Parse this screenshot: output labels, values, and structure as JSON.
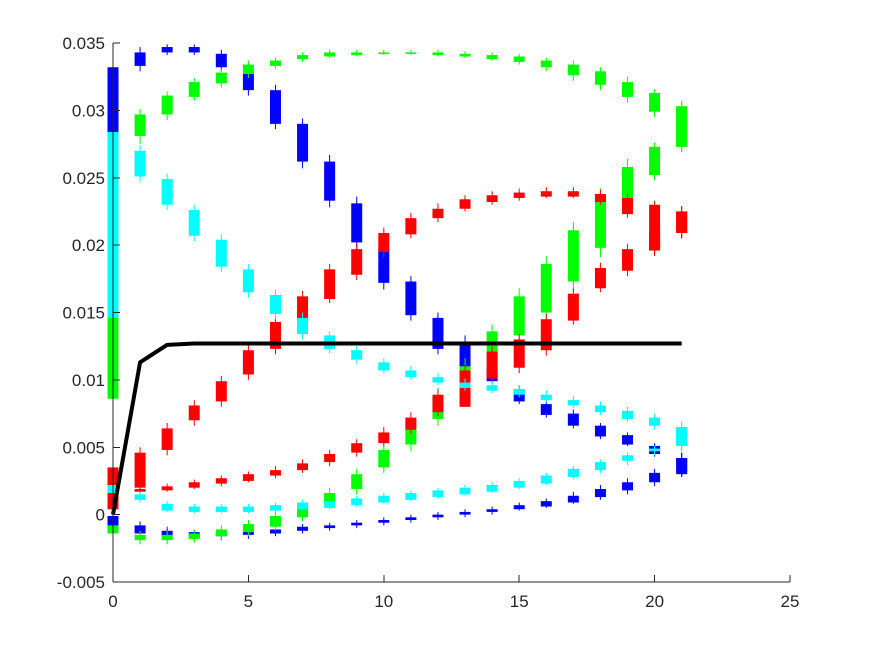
{
  "chart_data": {
    "type": "candlestick",
    "title": "",
    "xlabel": "",
    "ylabel": "",
    "xlim": [
      0,
      25
    ],
    "ylim": [
      -0.005,
      0.035
    ],
    "x_ticks": [
      0,
      5,
      10,
      15,
      20,
      25
    ],
    "y_ticks": [
      -0.005,
      0,
      0.005,
      0.01,
      0.015,
      0.02,
      0.025,
      0.03,
      0.035
    ],
    "x_tick_labels": [
      "0",
      "5",
      "10",
      "15",
      "20",
      "25"
    ],
    "y_tick_labels": [
      "-0.005",
      "0",
      "0.005",
      "0.01",
      "0.015",
      "0.02",
      "0.025",
      "0.03",
      "0.035"
    ],
    "grid": false,
    "box": false,
    "line_series": [
      {
        "color": "#000000",
        "x": [
          0,
          1,
          2,
          3,
          4,
          5,
          6,
          7,
          8,
          9,
          10,
          11,
          12,
          13,
          14,
          15,
          16,
          17,
          18,
          19,
          20,
          21
        ],
        "y": [
          0.0,
          0.0113,
          0.0126,
          0.0127,
          0.0127,
          0.0127,
          0.0127,
          0.0127,
          0.0127,
          0.0127,
          0.0127,
          0.0127,
          0.0127,
          0.0127,
          0.0127,
          0.0127,
          0.0127,
          0.0127,
          0.0127,
          0.0127,
          0.0127,
          0.0127
        ]
      }
    ],
    "box_series": [
      {
        "color": "#0000ff",
        "x": [
          0,
          1,
          2,
          3,
          4,
          5,
          6,
          7,
          8,
          9,
          10,
          11,
          12,
          13,
          14,
          15,
          16,
          17,
          18,
          19,
          20,
          21
        ],
        "low": [
          0.0272,
          0.0329,
          0.0341,
          0.0341,
          0.0329,
          0.0311,
          0.0286,
          0.0257,
          0.0228,
          0.0197,
          0.0167,
          0.0144,
          0.0119,
          0.0107,
          0.0097,
          0.0082,
          0.0072,
          0.0064,
          0.0056,
          0.0051,
          0.0043,
          0.0028
        ],
        "q1": [
          0.0282,
          0.0333,
          0.0343,
          0.0343,
          0.0332,
          0.0315,
          0.029,
          0.0262,
          0.0233,
          0.0202,
          0.0172,
          0.0148,
          0.0123,
          0.011,
          0.0099,
          0.0084,
          0.0074,
          0.0066,
          0.0058,
          0.0052,
          0.0045,
          0.0032
        ],
        "q3": [
          0.0332,
          0.0343,
          0.0347,
          0.0347,
          0.0342,
          0.0327,
          0.0315,
          0.029,
          0.0262,
          0.0231,
          0.0197,
          0.0173,
          0.0146,
          0.0128,
          0.0108,
          0.0093,
          0.0082,
          0.0075,
          0.0066,
          0.0059,
          0.0051,
          0.0042
        ],
        "high": [
          0.0336,
          0.0347,
          0.0349,
          0.0349,
          0.0345,
          0.0331,
          0.0319,
          0.0294,
          0.0267,
          0.0236,
          0.0202,
          0.0177,
          0.015,
          0.0133,
          0.0111,
          0.0096,
          0.0085,
          0.0078,
          0.0068,
          0.0061,
          0.0053,
          0.0046
        ]
      },
      {
        "color": "#0000ff",
        "x": [
          0,
          1,
          2,
          3,
          4,
          5,
          6,
          7,
          8,
          9,
          10,
          11,
          12,
          13,
          14,
          15,
          16,
          17,
          18,
          19,
          20,
          21
        ],
        "low": [
          -0.0014,
          -0.0017,
          -0.0018,
          -0.0019,
          -0.0019,
          -0.0018,
          -0.0016,
          -0.0014,
          -0.0012,
          -0.001,
          -0.0008,
          -0.0006,
          -0.0004,
          -0.0002,
          0.0,
          0.0003,
          0.0005,
          0.0008,
          0.0011,
          0.0015,
          0.0021,
          0.0028
        ],
        "q1": [
          -0.001,
          -0.0014,
          -0.0016,
          -0.0017,
          -0.0016,
          -0.0015,
          -0.0014,
          -0.0012,
          -0.001,
          -0.0008,
          -0.0006,
          -0.0004,
          -0.0002,
          0.0,
          0.0002,
          0.0004,
          0.0006,
          0.0009,
          0.0013,
          0.0018,
          0.0024,
          0.003
        ],
        "q3": [
          -0.0001,
          -0.0008,
          -0.0012,
          -0.0013,
          -0.0013,
          -0.0012,
          -0.0011,
          -0.0009,
          -0.0008,
          -0.0006,
          -0.0004,
          -0.0002,
          0.0,
          0.0002,
          0.0004,
          0.0007,
          0.001,
          0.0014,
          0.0019,
          0.0024,
          0.0031,
          0.0042
        ],
        "high": [
          0.0003,
          -0.0005,
          -0.0009,
          -0.0011,
          -0.0011,
          -0.001,
          -0.0009,
          -0.0007,
          -0.0006,
          -0.0004,
          -0.0002,
          0.0,
          0.0002,
          0.0004,
          0.0006,
          0.0009,
          0.0012,
          0.0017,
          0.0022,
          0.0027,
          0.0034,
          0.0046
        ]
      },
      {
        "color": "#00ff00",
        "x": [
          0,
          1,
          2,
          3,
          4,
          5,
          6,
          7,
          8,
          9,
          10,
          11,
          12,
          13,
          14,
          15,
          16,
          17,
          18,
          19,
          20,
          21
        ],
        "low": [
          0.0082,
          0.0275,
          0.0293,
          0.0307,
          0.0317,
          0.0324,
          0.0331,
          0.0336,
          0.0339,
          0.034,
          0.0341,
          0.0341,
          0.034,
          0.0339,
          0.0337,
          0.0334,
          0.0329,
          0.0322,
          0.0315,
          0.0306,
          0.0295,
          0.0269
        ],
        "q1": [
          0.0086,
          0.0281,
          0.0297,
          0.031,
          0.032,
          0.0327,
          0.0333,
          0.0338,
          0.034,
          0.0341,
          0.0342,
          0.0342,
          0.0341,
          0.034,
          0.0338,
          0.0336,
          0.0332,
          0.0326,
          0.0319,
          0.031,
          0.0299,
          0.0273
        ],
        "q3": [
          0.0152,
          0.0297,
          0.0311,
          0.0321,
          0.0328,
          0.0334,
          0.0337,
          0.0341,
          0.0343,
          0.0343,
          0.0343,
          0.0343,
          0.0343,
          0.0342,
          0.0341,
          0.034,
          0.0337,
          0.0334,
          0.0329,
          0.0321,
          0.0313,
          0.0303
        ],
        "high": [
          0.0156,
          0.0301,
          0.0314,
          0.0324,
          0.0331,
          0.0337,
          0.0339,
          0.0343,
          0.0345,
          0.0345,
          0.0345,
          0.0345,
          0.0345,
          0.0344,
          0.0343,
          0.0342,
          0.0339,
          0.0337,
          0.0332,
          0.0325,
          0.0316,
          0.0307
        ]
      },
      {
        "color": "#00ff00",
        "x": [
          0,
          1,
          2,
          3,
          4,
          5,
          6,
          7,
          8,
          9,
          10,
          11,
          12,
          13,
          14,
          15,
          16,
          17,
          18,
          19,
          20,
          21
        ],
        "low": [
          -0.0017,
          -0.0022,
          -0.0022,
          -0.0021,
          -0.0019,
          -0.0016,
          -0.0012,
          -0.0005,
          0.0004,
          0.0015,
          0.0031,
          0.0047,
          0.0066,
          0.0087,
          0.0107,
          0.0125,
          0.0142,
          0.0166,
          0.0191,
          0.022,
          0.0248,
          0.0269
        ],
        "q1": [
          -0.0014,
          -0.0019,
          -0.0019,
          -0.0018,
          -0.0016,
          -0.0013,
          -0.0009,
          -0.0002,
          0.0007,
          0.0019,
          0.0035,
          0.0052,
          0.0071,
          0.0093,
          0.0113,
          0.0133,
          0.015,
          0.0173,
          0.0198,
          0.0226,
          0.0252,
          0.0273
        ],
        "q3": [
          -0.0008,
          -0.0015,
          -0.0015,
          -0.0014,
          -0.0011,
          -0.0007,
          -0.0001,
          0.0005,
          0.0016,
          0.003,
          0.0048,
          0.0067,
          0.0088,
          0.011,
          0.0136,
          0.0162,
          0.0186,
          0.0211,
          0.0236,
          0.0258,
          0.0273,
          0.0303
        ],
        "high": [
          -0.0005,
          -0.0012,
          -0.0012,
          -0.0011,
          -0.0008,
          -0.0004,
          0.0002,
          0.0009,
          0.002,
          0.0034,
          0.0052,
          0.0072,
          0.0094,
          0.0116,
          0.0141,
          0.0168,
          0.0192,
          0.0217,
          0.0242,
          0.0264,
          0.0276,
          0.0307
        ]
      },
      {
        "color": "#ff0000",
        "x": [
          0,
          1,
          2,
          3,
          4,
          5,
          6,
          7,
          8,
          9,
          10,
          11,
          12,
          13,
          14,
          15,
          16,
          17,
          18,
          19,
          20,
          21
        ],
        "low": [
          0.0,
          0.0016,
          0.0044,
          0.0066,
          0.008,
          0.01,
          0.0119,
          0.0136,
          0.0157,
          0.0174,
          0.0191,
          0.0205,
          0.0217,
          0.0225,
          0.023,
          0.0233,
          0.0235,
          0.0235,
          0.023,
          0.0221,
          0.0192,
          0.0205
        ],
        "q1": [
          0.0004,
          0.002,
          0.0048,
          0.007,
          0.0084,
          0.0104,
          0.0123,
          0.014,
          0.016,
          0.0178,
          0.0195,
          0.0208,
          0.022,
          0.0227,
          0.0232,
          0.0235,
          0.0236,
          0.0236,
          0.0232,
          0.0223,
          0.0196,
          0.0209
        ],
        "q3": [
          0.0035,
          0.0046,
          0.0064,
          0.0081,
          0.0099,
          0.0122,
          0.0143,
          0.0162,
          0.0182,
          0.0197,
          0.0209,
          0.022,
          0.0227,
          0.0234,
          0.0237,
          0.0239,
          0.024,
          0.024,
          0.0238,
          0.0235,
          0.023,
          0.0225
        ],
        "high": [
          0.0039,
          0.005,
          0.0068,
          0.0085,
          0.0103,
          0.0126,
          0.0147,
          0.0166,
          0.0186,
          0.0201,
          0.0213,
          0.0224,
          0.0231,
          0.0237,
          0.024,
          0.0242,
          0.0243,
          0.0243,
          0.0241,
          0.0238,
          0.0233,
          0.0229
        ]
      },
      {
        "color": "#ff0000",
        "x": [
          0,
          1,
          2,
          3,
          4,
          5,
          6,
          7,
          8,
          9,
          10,
          11,
          12,
          13,
          14,
          15,
          16,
          17,
          18,
          19,
          20,
          21
        ],
        "low": [
          0.0,
          0.0016,
          0.0017,
          0.0019,
          0.0021,
          0.0024,
          0.0027,
          0.0031,
          0.0036,
          0.0043,
          0.0051,
          0.006,
          0.0073,
          0.0085,
          0.0098,
          0.0105,
          0.0118,
          0.0141,
          0.0165,
          0.0177,
          0.0192,
          0.0205
        ],
        "q1": [
          0.0004,
          0.0017,
          0.0018,
          0.002,
          0.0023,
          0.0025,
          0.0029,
          0.0033,
          0.0039,
          0.0046,
          0.0053,
          0.0063,
          0.0076,
          0.008,
          0.0101,
          0.0109,
          0.0122,
          0.0144,
          0.0168,
          0.0181,
          0.0196,
          0.0209
        ],
        "q3": [
          0.0035,
          0.0019,
          0.0021,
          0.0024,
          0.0027,
          0.003,
          0.0033,
          0.0038,
          0.0045,
          0.0053,
          0.0061,
          0.0072,
          0.0089,
          0.0107,
          0.0121,
          0.013,
          0.0145,
          0.0164,
          0.0183,
          0.0197,
          0.021,
          0.0225
        ],
        "high": [
          0.0039,
          0.0021,
          0.0023,
          0.0026,
          0.0029,
          0.0032,
          0.0036,
          0.0041,
          0.0048,
          0.0056,
          0.0065,
          0.0076,
          0.0093,
          0.0111,
          0.0125,
          0.0134,
          0.0149,
          0.0168,
          0.0187,
          0.0201,
          0.0214,
          0.0229
        ]
      },
      {
        "color": "#00ffff",
        "x": [
          0,
          1,
          2,
          3,
          4,
          5,
          6,
          7,
          8,
          9,
          10,
          11,
          12,
          13,
          14,
          15,
          16,
          17,
          18,
          19,
          20,
          21
        ],
        "low": [
          0.0141,
          0.0247,
          0.0226,
          0.0203,
          0.018,
          0.0161,
          0.0145,
          0.013,
          0.012,
          0.0112,
          0.0105,
          0.01,
          0.0096,
          0.0092,
          0.009,
          0.0087,
          0.0083,
          0.0079,
          0.0074,
          0.0069,
          0.0063,
          0.0047
        ],
        "q1": [
          0.0146,
          0.0251,
          0.023,
          0.0207,
          0.0184,
          0.0165,
          0.0149,
          0.0134,
          0.0123,
          0.0115,
          0.0107,
          0.0102,
          0.0098,
          0.0094,
          0.0092,
          0.0089,
          0.0085,
          0.0081,
          0.0076,
          0.0071,
          0.0066,
          0.0051
        ],
        "q3": [
          0.0284,
          0.027,
          0.0249,
          0.0226,
          0.0204,
          0.0182,
          0.0163,
          0.0146,
          0.0133,
          0.0122,
          0.0113,
          0.0107,
          0.0102,
          0.0098,
          0.0096,
          0.0093,
          0.0089,
          0.0085,
          0.0081,
          0.0077,
          0.0072,
          0.0065
        ],
        "high": [
          0.0288,
          0.0274,
          0.0253,
          0.023,
          0.0208,
          0.0186,
          0.0167,
          0.015,
          0.0136,
          0.0125,
          0.0116,
          0.011,
          0.0105,
          0.0101,
          0.0099,
          0.0096,
          0.0092,
          0.0088,
          0.0084,
          0.008,
          0.0075,
          0.0069
        ]
      },
      {
        "color": "#00ffff",
        "x": [
          0,
          1,
          2,
          3,
          4,
          5,
          6,
          7,
          8,
          9,
          10,
          11,
          12,
          13,
          14,
          15,
          16,
          17,
          18,
          19,
          20,
          21
        ],
        "low": [
          0.0014,
          0.0009,
          0.0002,
          0.0001,
          0.0001,
          0.0001,
          0.0002,
          0.0003,
          0.0004,
          0.0006,
          0.0008,
          0.001,
          0.0012,
          0.0014,
          0.0016,
          0.0019,
          0.0022,
          0.0026,
          0.0031,
          0.0037,
          0.0044,
          0.0047
        ],
        "q1": [
          0.0016,
          0.0011,
          0.0003,
          0.0002,
          0.0002,
          0.0002,
          0.0003,
          0.0004,
          0.0005,
          0.0007,
          0.0009,
          0.0011,
          0.0013,
          0.0015,
          0.0017,
          0.002,
          0.0023,
          0.0028,
          0.0033,
          0.004,
          0.0047,
          0.0051
        ],
        "q3": [
          0.0022,
          0.0015,
          0.0008,
          0.0006,
          0.0006,
          0.0006,
          0.0007,
          0.0009,
          0.001,
          0.0012,
          0.0014,
          0.0016,
          0.0018,
          0.002,
          0.0022,
          0.0025,
          0.0029,
          0.0034,
          0.0039,
          0.0044,
          0.0049,
          0.0065
        ],
        "high": [
          0.0024,
          0.0017,
          0.001,
          0.0008,
          0.0008,
          0.0008,
          0.0009,
          0.0011,
          0.0012,
          0.0014,
          0.0016,
          0.0018,
          0.002,
          0.0022,
          0.0024,
          0.0027,
          0.0031,
          0.0036,
          0.0041,
          0.0046,
          0.0051,
          0.0069
        ]
      }
    ]
  }
}
